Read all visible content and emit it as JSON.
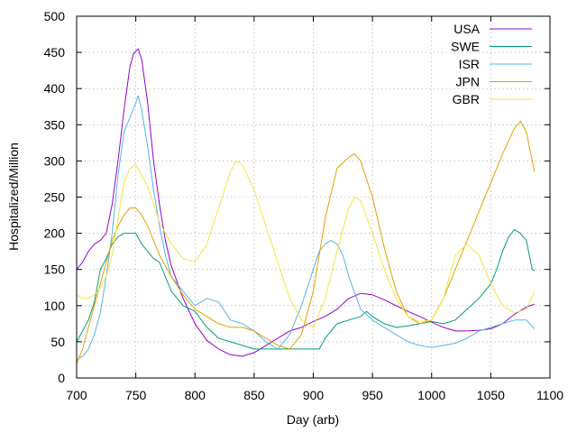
{
  "chart_data": {
    "type": "line",
    "title": "",
    "xlabel": "Day (arb)",
    "ylabel": "Hospitalized/Million",
    "xlim": [
      700,
      1100
    ],
    "ylim": [
      0,
      500
    ],
    "xticks": [
      700,
      750,
      800,
      850,
      900,
      950,
      1000,
      1050,
      1100
    ],
    "yticks": [
      0,
      50,
      100,
      150,
      200,
      250,
      300,
      350,
      400,
      450,
      500
    ],
    "grid": true,
    "legend_position": "top-right",
    "series": [
      {
        "name": "USA",
        "color": "#9400d3",
        "x": [
          700,
          705,
          710,
          715,
          720,
          725,
          730,
          735,
          740,
          745,
          748,
          752,
          755,
          760,
          765,
          770,
          775,
          780,
          790,
          800,
          810,
          820,
          830,
          840,
          850,
          860,
          870,
          880,
          890,
          900,
          910,
          920,
          930,
          940,
          950,
          960,
          970,
          980,
          990,
          1000,
          1010,
          1020,
          1030,
          1040,
          1050,
          1060,
          1070,
          1080,
          1087
        ],
        "values": [
          150,
          160,
          175,
          185,
          190,
          200,
          240,
          300,
          370,
          430,
          448,
          455,
          440,
          380,
          300,
          240,
          190,
          155,
          110,
          75,
          52,
          40,
          32,
          30,
          35,
          45,
          55,
          65,
          70,
          78,
          85,
          95,
          110,
          117,
          115,
          108,
          100,
          92,
          85,
          77,
          70,
          65,
          65,
          66,
          68,
          75,
          88,
          98,
          102
        ]
      },
      {
        "name": "SWE",
        "color": "#009e73",
        "x": [
          700,
          705,
          710,
          715,
          720,
          725,
          730,
          735,
          740,
          745,
          750,
          755,
          760,
          765,
          770,
          775,
          780,
          790,
          800,
          810,
          820,
          830,
          840,
          850,
          860,
          870,
          880,
          890,
          900,
          905,
          910,
          920,
          930,
          940,
          945,
          950,
          960,
          970,
          980,
          990,
          1000,
          1010,
          1020,
          1030,
          1040,
          1050,
          1055,
          1060,
          1065,
          1070,
          1075,
          1080,
          1085,
          1087
        ],
        "values": [
          50,
          65,
          80,
          105,
          150,
          165,
          185,
          195,
          200,
          200,
          200,
          185,
          175,
          165,
          160,
          140,
          120,
          100,
          92,
          70,
          55,
          50,
          45,
          40,
          40,
          40,
          40,
          40,
          40,
          40,
          55,
          75,
          80,
          85,
          92,
          85,
          75,
          70,
          72,
          75,
          78,
          75,
          80,
          95,
          110,
          130,
          150,
          175,
          195,
          205,
          200,
          190,
          150,
          148
        ]
      },
      {
        "name": "ISR",
        "color": "#56b4e9",
        "x": [
          700,
          705,
          710,
          715,
          720,
          725,
          730,
          735,
          740,
          745,
          750,
          752,
          755,
          760,
          765,
          770,
          775,
          780,
          790,
          800,
          810,
          820,
          830,
          840,
          850,
          860,
          870,
          880,
          890,
          900,
          905,
          910,
          915,
          920,
          925,
          930,
          940,
          950,
          960,
          970,
          980,
          990,
          1000,
          1010,
          1020,
          1030,
          1040,
          1050,
          1060,
          1070,
          1080,
          1087
        ],
        "values": [
          25,
          30,
          40,
          60,
          90,
          140,
          200,
          280,
          340,
          360,
          380,
          390,
          370,
          320,
          260,
          210,
          170,
          140,
          120,
          100,
          110,
          105,
          80,
          75,
          65,
          50,
          40,
          60,
          100,
          150,
          175,
          185,
          190,
          185,
          170,
          140,
          95,
          80,
          70,
          60,
          50,
          45,
          42,
          45,
          48,
          55,
          65,
          70,
          75,
          80,
          80,
          68
        ]
      },
      {
        "name": "JPN",
        "color": "#e69f00",
        "x": [
          700,
          705,
          710,
          715,
          720,
          725,
          730,
          735,
          740,
          745,
          750,
          755,
          760,
          765,
          770,
          780,
          790,
          800,
          810,
          820,
          830,
          840,
          850,
          860,
          870,
          880,
          890,
          900,
          910,
          920,
          930,
          935,
          940,
          950,
          960,
          970,
          980,
          990,
          1000,
          1010,
          1020,
          1030,
          1040,
          1050,
          1060,
          1070,
          1075,
          1080,
          1087
        ],
        "values": [
          20,
          40,
          70,
          100,
          130,
          160,
          190,
          210,
          225,
          235,
          235,
          225,
          210,
          190,
          170,
          140,
          115,
          95,
          85,
          75,
          70,
          70,
          65,
          55,
          45,
          40,
          60,
          120,
          220,
          290,
          305,
          310,
          300,
          250,
          180,
          120,
          85,
          75,
          80,
          110,
          150,
          190,
          230,
          270,
          310,
          345,
          355,
          340,
          285
        ]
      },
      {
        "name": "GBR",
        "color": "#f0e442",
        "x": [
          700,
          705,
          710,
          715,
          720,
          725,
          730,
          735,
          740,
          745,
          750,
          755,
          760,
          765,
          770,
          780,
          790,
          800,
          810,
          820,
          830,
          835,
          840,
          850,
          860,
          870,
          880,
          890,
          900,
          910,
          920,
          930,
          935,
          940,
          950,
          960,
          970,
          980,
          990,
          1000,
          1010,
          1020,
          1030,
          1040,
          1050,
          1060,
          1070,
          1080,
          1087
        ],
        "values": [
          115,
          110,
          110,
          115,
          125,
          140,
          170,
          220,
          270,
          290,
          295,
          280,
          265,
          240,
          215,
          185,
          165,
          160,
          185,
          235,
          285,
          300,
          295,
          260,
          210,
          160,
          110,
          80,
          70,
          110,
          175,
          235,
          250,
          245,
          200,
          150,
          110,
          85,
          78,
          80,
          110,
          170,
          185,
          170,
          130,
          100,
          90,
          95,
          120
        ]
      }
    ]
  }
}
